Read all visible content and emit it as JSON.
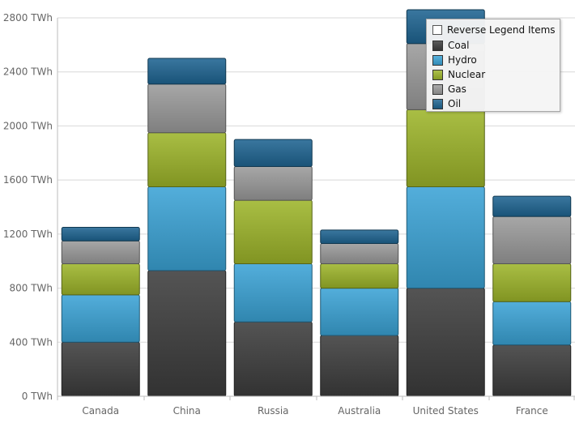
{
  "chart_data": {
    "type": "bar",
    "stacked": true,
    "categories": [
      "Canada",
      "China",
      "Russia",
      "Australia",
      "United States",
      "France"
    ],
    "series": [
      {
        "name": "Coal",
        "color": "#3d3d3d",
        "values": [
          400,
          930,
          550,
          450,
          800,
          380
        ]
      },
      {
        "name": "Hydro",
        "color": "#3ba3d6",
        "values": [
          350,
          620,
          430,
          350,
          750,
          320
        ]
      },
      {
        "name": "Nuclear",
        "color": "#9db52a",
        "values": [
          230,
          400,
          470,
          180,
          570,
          280
        ]
      },
      {
        "name": "Gas",
        "color": "#9b9b9b",
        "values": [
          170,
          360,
          250,
          150,
          490,
          350
        ]
      },
      {
        "name": "Oil",
        "color": "#1f6592",
        "values": [
          100,
          190,
          200,
          100,
          250,
          150
        ]
      }
    ],
    "ylim": [
      0,
      2800
    ],
    "yticks": [
      0,
      400,
      800,
      1200,
      1600,
      2000,
      2400,
      2800
    ],
    "ytick_labels": [
      "0 TWh",
      "400 TWh",
      "800 TWh",
      "1200 TWh",
      "1600 TWh",
      "2000 TWh",
      "2400 TWh",
      "2800 TWh"
    ],
    "grid": true,
    "legend_position": "top-right"
  },
  "legend": {
    "reverse_label": "Reverse Legend Items",
    "reverse_checked": false
  }
}
